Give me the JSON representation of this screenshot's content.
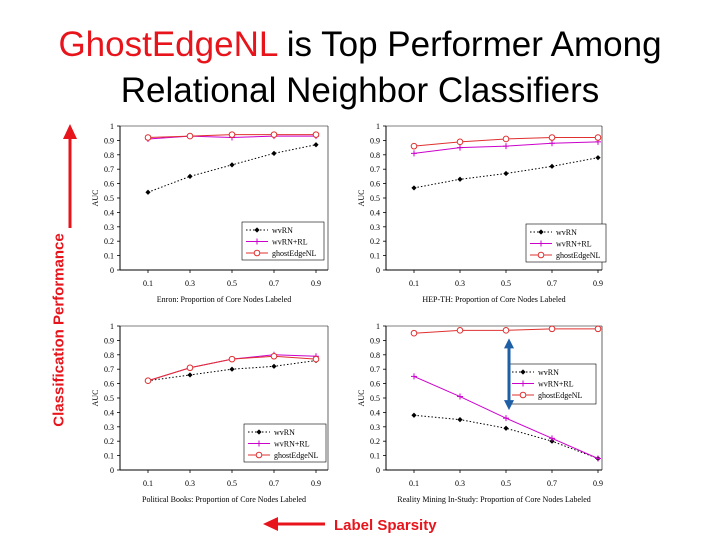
{
  "slide": {
    "title_highlight": "GhostEdgeNL",
    "title_rest": " is Top Performer Among",
    "title_line2": "Relational Neighbor Classifiers",
    "y_annotation": "Classification Performance",
    "x_annotation": "Label Sparsity",
    "colors": {
      "title_highlight": "#e8141b",
      "annotation": "#e8141b",
      "gap_arrow": "#1f5fa6"
    }
  },
  "chart_data": [
    {
      "type": "line",
      "xlabel": "Enron: Proportion of Core Nodes Labeled",
      "ylabel": "AUC",
      "x": [
        0.1,
        0.3,
        0.5,
        0.7,
        0.9
      ],
      "x_ticks": [
        "0.1",
        "0.3",
        "0.5",
        "0.7",
        "0.9"
      ],
      "y_ticks": [
        "0",
        "0.1",
        "0.2",
        "0.3",
        "0.4",
        "0.5",
        "0.6",
        "0.7",
        "0.8",
        "0.9",
        "1"
      ],
      "ylim": [
        0,
        1
      ],
      "legend_position": "bottom-right",
      "series": [
        {
          "name": "wvRN",
          "values": [
            0.54,
            0.65,
            0.73,
            0.81,
            0.87
          ],
          "color": "#000000",
          "style": "dotted",
          "marker": "diamond"
        },
        {
          "name": "wvRN+RL",
          "values": [
            0.91,
            0.93,
            0.92,
            0.93,
            0.93
          ],
          "color": "#cc00cc",
          "style": "solid",
          "marker": "plus"
        },
        {
          "name": "ghostEdgeNL",
          "values": [
            0.92,
            0.93,
            0.94,
            0.94,
            0.94
          ],
          "color": "#e03030",
          "style": "solid",
          "marker": "circle"
        }
      ]
    },
    {
      "type": "line",
      "xlabel": "HEP-TH: Proportion of Core Nodes Labeled",
      "ylabel": "AUC",
      "x": [
        0.1,
        0.3,
        0.5,
        0.7,
        0.9
      ],
      "x_ticks": [
        "0.1",
        "0.3",
        "0.5",
        "0.7",
        "0.9"
      ],
      "y_ticks": [
        "0",
        "0.1",
        "0.2",
        "0.3",
        "0.4",
        "0.5",
        "0.6",
        "0.7",
        "0.8",
        "0.9",
        "1"
      ],
      "ylim": [
        0,
        1
      ],
      "legend_position": "bottom-right",
      "series": [
        {
          "name": "wvRN",
          "values": [
            0.57,
            0.63,
            0.67,
            0.72,
            0.78
          ],
          "color": "#000000",
          "style": "dotted",
          "marker": "diamond"
        },
        {
          "name": "wvRN+RL",
          "values": [
            0.81,
            0.85,
            0.86,
            0.88,
            0.89
          ],
          "color": "#cc00cc",
          "style": "solid",
          "marker": "plus"
        },
        {
          "name": "ghostEdgeNL",
          "values": [
            0.86,
            0.89,
            0.91,
            0.92,
            0.92
          ],
          "color": "#e03030",
          "style": "solid",
          "marker": "circle"
        }
      ]
    },
    {
      "type": "line",
      "xlabel": "Political Books: Proportion of Core Nodes Labeled",
      "ylabel": "AUC",
      "x": [
        0.1,
        0.3,
        0.5,
        0.7,
        0.9
      ],
      "x_ticks": [
        "0.1",
        "0.3",
        "0.5",
        "0.7",
        "0.9"
      ],
      "y_ticks": [
        "0",
        "0.1",
        "0.2",
        "0.3",
        "0.4",
        "0.5",
        "0.6",
        "0.7",
        "0.8",
        "0.9",
        "1"
      ],
      "ylim": [
        0,
        1
      ],
      "legend_position": "bottom-right",
      "series": [
        {
          "name": "wvRN",
          "values": [
            0.62,
            0.66,
            0.7,
            0.72,
            0.76
          ],
          "color": "#000000",
          "style": "dotted",
          "marker": "diamond"
        },
        {
          "name": "wvRN+RL",
          "values": [
            0.62,
            0.71,
            0.77,
            0.8,
            0.79
          ],
          "color": "#cc00cc",
          "style": "solid",
          "marker": "plus"
        },
        {
          "name": "ghostEdgeNL",
          "values": [
            0.62,
            0.71,
            0.77,
            0.79,
            0.77
          ],
          "color": "#e03030",
          "style": "solid",
          "marker": "circle"
        }
      ]
    },
    {
      "type": "line",
      "xlabel": "Reality Mining In-Study: Proportion of Core Nodes Labeled",
      "ylabel": "AUC",
      "x": [
        0.1,
        0.3,
        0.5,
        0.7,
        0.9
      ],
      "x_ticks": [
        "0.1",
        "0.3",
        "0.5",
        "0.7",
        "0.9"
      ],
      "y_ticks": [
        "0",
        "0.1",
        "0.2",
        "0.3",
        "0.4",
        "0.5",
        "0.6",
        "0.7",
        "0.8",
        "0.9",
        "1"
      ],
      "ylim": [
        0,
        1
      ],
      "legend_position": "middle-right",
      "series": [
        {
          "name": "wvRN",
          "values": [
            0.38,
            0.35,
            0.29,
            0.2,
            0.08
          ],
          "color": "#000000",
          "style": "dotted",
          "marker": "diamond"
        },
        {
          "name": "wvRN+RL",
          "values": [
            0.65,
            0.51,
            0.36,
            0.22,
            0.08
          ],
          "color": "#cc00cc",
          "style": "solid",
          "marker": "plus"
        },
        {
          "name": "ghostEdgeNL",
          "values": [
            0.95,
            0.97,
            0.97,
            0.98,
            0.98
          ],
          "color": "#e03030",
          "style": "solid",
          "marker": "circle"
        }
      ],
      "annotation": "double-arrow"
    }
  ]
}
